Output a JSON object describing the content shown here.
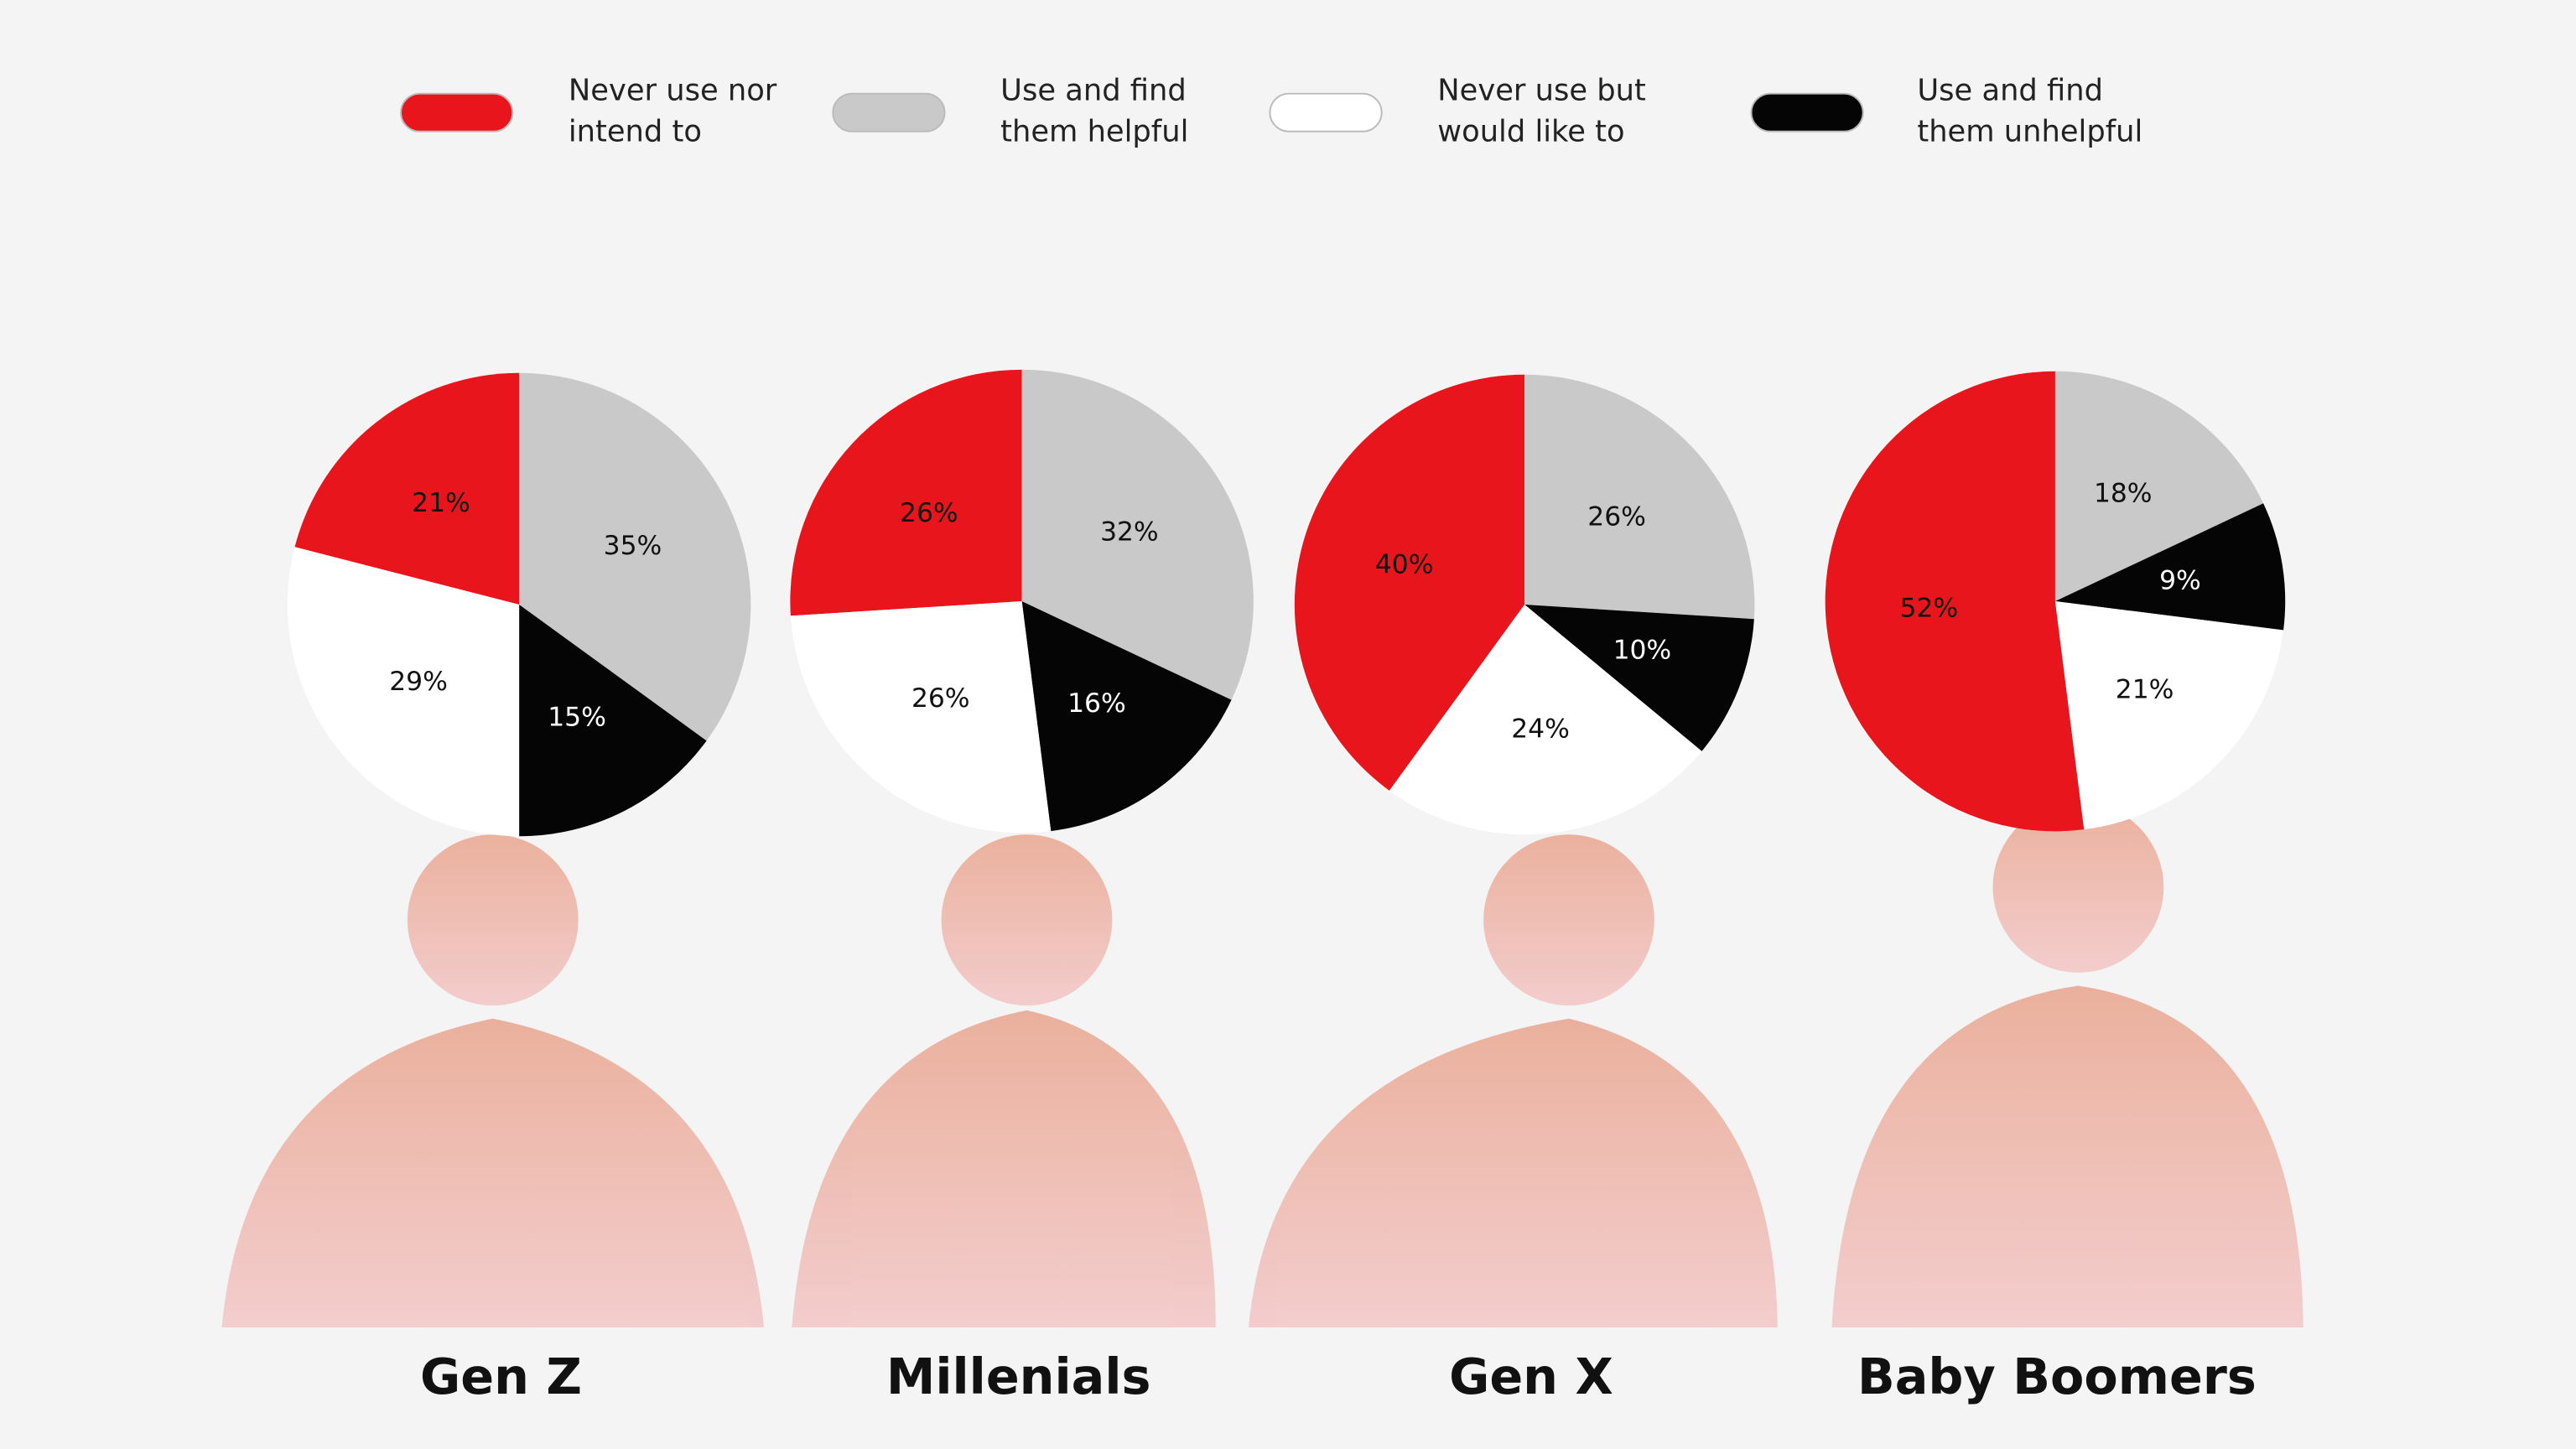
{
  "legend": {
    "names": [
      "Never use nor intend to",
      "Use and find them helpful",
      "Never use but would like to",
      "Use and find them unhelpful"
    ],
    "colors": [
      "#e8161c",
      "#c9c9c9",
      "#ffffff",
      "#050505"
    ]
  },
  "chart_data": [
    {
      "type": "pie",
      "title": "Gen Z",
      "values": [
        21,
        35,
        29,
        15
      ],
      "value_labels": [
        "21%",
        "35%",
        "29%",
        "15%"
      ]
    },
    {
      "type": "pie",
      "title": "Millenials",
      "values": [
        26,
        32,
        26,
        16
      ],
      "value_labels": [
        "26%",
        "32%",
        "26%",
        "16%"
      ]
    },
    {
      "type": "pie",
      "title": "Gen X",
      "values": [
        40,
        26,
        24,
        10
      ],
      "value_labels": [
        "40%",
        "26%",
        "24%",
        "10%"
      ]
    },
    {
      "type": "pie",
      "title": "Baby Boomers",
      "values": [
        52,
        18,
        21,
        9
      ],
      "value_labels": [
        "52%",
        "18%",
        "21%",
        "9%"
      ]
    }
  ]
}
